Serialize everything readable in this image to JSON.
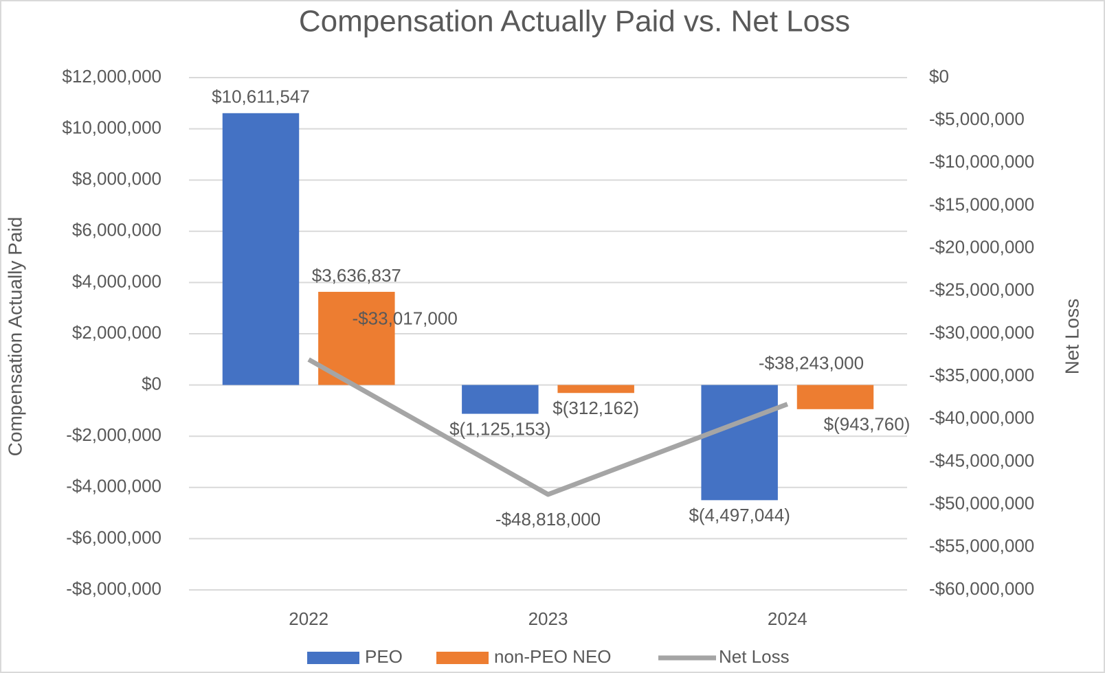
{
  "chart_data": {
    "type": "bar",
    "title": "Compensation Actually Paid vs. Net Loss",
    "ylabel": "Compensation Actually Paid",
    "y2label": "Net Loss",
    "categories": [
      "2022",
      "2023",
      "2024"
    ],
    "series": [
      {
        "name": "PEO",
        "type": "bar",
        "color": "#4472c4",
        "values": [
          10611547,
          -1125153,
          -4497044
        ],
        "value_labels": [
          "$10,611,547",
          "$(1,125,153)",
          "$(4,497,044)"
        ]
      },
      {
        "name": "non-PEO NEO",
        "type": "bar",
        "color": "#ed7d31",
        "values": [
          3636837,
          -312162,
          -943760
        ],
        "value_labels": [
          "$3,636,837",
          "$(312,162)",
          "$(943,760)"
        ]
      },
      {
        "name": "Net Loss",
        "type": "line",
        "axis": "y2",
        "color": "#a5a5a5",
        "values": [
          -33017000,
          -48818000,
          -38243000
        ],
        "value_labels": [
          "-$33,017,000",
          "-$48,818,000",
          "-$38,243,000"
        ]
      }
    ],
    "ylim": [
      -8000000,
      12000000
    ],
    "yticks": [
      {
        "value": -8000000,
        "label": "-$8,000,000"
      },
      {
        "value": -6000000,
        "label": "-$6,000,000"
      },
      {
        "value": -4000000,
        "label": "-$4,000,000"
      },
      {
        "value": -2000000,
        "label": "-$2,000,000"
      },
      {
        "value": 0,
        "label": "$0"
      },
      {
        "value": 2000000,
        "label": "$2,000,000"
      },
      {
        "value": 4000000,
        "label": "$4,000,000"
      },
      {
        "value": 6000000,
        "label": "$6,000,000"
      },
      {
        "value": 8000000,
        "label": "$8,000,000"
      },
      {
        "value": 10000000,
        "label": "$10,000,000"
      },
      {
        "value": 12000000,
        "label": "$12,000,000"
      }
    ],
    "y2lim": [
      -60000000,
      0
    ],
    "y2ticks": [
      {
        "value": -60000000,
        "label": "-$60,000,000"
      },
      {
        "value": -55000000,
        "label": "-$55,000,000"
      },
      {
        "value": -50000000,
        "label": "-$50,000,000"
      },
      {
        "value": -45000000,
        "label": "-$45,000,000"
      },
      {
        "value": -40000000,
        "label": "-$40,000,000"
      },
      {
        "value": -35000000,
        "label": "-$35,000,000"
      },
      {
        "value": -30000000,
        "label": "-$30,000,000"
      },
      {
        "value": -25000000,
        "label": "-$25,000,000"
      },
      {
        "value": -20000000,
        "label": "-$20,000,000"
      },
      {
        "value": -15000000,
        "label": "-$15,000,000"
      },
      {
        "value": -10000000,
        "label": "-$10,000,000"
      },
      {
        "value": -5000000,
        "label": "-$5,000,000"
      },
      {
        "value": 0,
        "label": "$0"
      }
    ],
    "grid": true,
    "legend": "bottom"
  }
}
